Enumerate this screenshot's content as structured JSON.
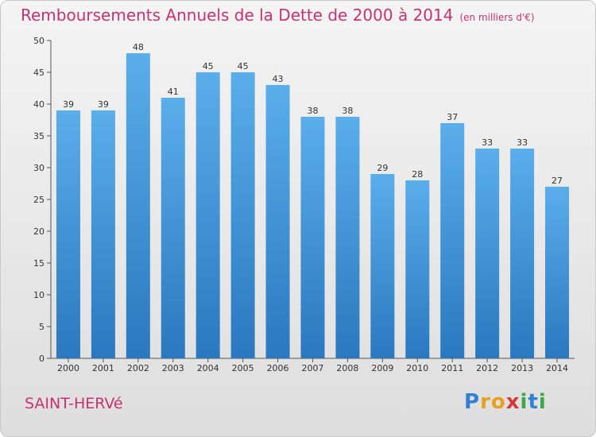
{
  "title": "Remboursements Annuels de la Dette de 2000 à 2014",
  "unit_note": "(en milliers d'€)",
  "commune": "SAINT-HERVé",
  "logo": {
    "letters": [
      "P",
      "r",
      "o",
      "x",
      "i",
      "t",
      "i"
    ]
  },
  "colors": {
    "bar_light": "#5aaeea",
    "bar_dark": "#2a78c0",
    "accent": "#c8326e"
  },
  "chart_data": {
    "type": "bar",
    "title": "Remboursements Annuels de la Dette de 2000 à 2014",
    "categories": [
      "2000",
      "2001",
      "2002",
      "2003",
      "2004",
      "2005",
      "2006",
      "2007",
      "2008",
      "2009",
      "2010",
      "2011",
      "2012",
      "2013",
      "2014"
    ],
    "values": [
      39,
      39,
      48,
      41,
      45,
      45,
      43,
      38,
      38,
      29,
      28,
      37,
      33,
      33,
      27
    ],
    "ylim": [
      0,
      50
    ],
    "yticks": [
      0,
      5,
      10,
      15,
      20,
      25,
      30,
      35,
      40,
      45,
      50
    ],
    "grid": false,
    "data_labels": true
  }
}
